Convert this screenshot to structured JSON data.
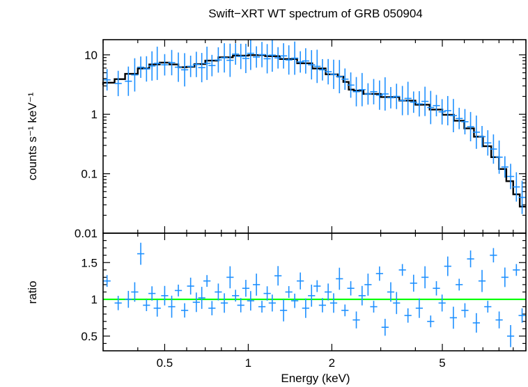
{
  "chart_data": [
    {
      "type": "scatter",
      "panel": "top",
      "title": "Swift−XRT WT spectrum of GRB 050904",
      "xlabel": "",
      "ylabel": "counts s⁻¹ keV⁻¹",
      "xscale": "log",
      "yscale": "log",
      "xlim": [
        0.3,
        10
      ],
      "ylim": [
        0.01,
        18
      ],
      "yticks": [
        {
          "v": 0.01,
          "label": "0.01"
        },
        {
          "v": 0.1,
          "label": "0.1"
        },
        {
          "v": 1,
          "label": "1"
        },
        {
          "v": 10,
          "label": "10"
        }
      ],
      "series": [
        {
          "kind": "data",
          "color": "#1e90ff",
          "points": [
            [
              0.31,
              3.8
            ],
            [
              0.34,
              3.3
            ],
            [
              0.37,
              3.6
            ],
            [
              0.39,
              4.6
            ],
            [
              0.41,
              6.2
            ],
            [
              0.43,
              5.8
            ],
            [
              0.45,
              6.5
            ],
            [
              0.47,
              7.2
            ],
            [
              0.5,
              6.8
            ],
            [
              0.53,
              7.4
            ],
            [
              0.56,
              6.2
            ],
            [
              0.59,
              5.6
            ],
            [
              0.62,
              6.4
            ],
            [
              0.65,
              6.9
            ],
            [
              0.68,
              6.1
            ],
            [
              0.71,
              7.2
            ],
            [
              0.74,
              6.6
            ],
            [
              0.78,
              8.2
            ],
            [
              0.82,
              8.9
            ],
            [
              0.86,
              8.1
            ],
            [
              0.9,
              10.3
            ],
            [
              0.94,
              9.4
            ],
            [
              0.98,
              8.7
            ],
            [
              1.02,
              10.6
            ],
            [
              1.07,
              9.2
            ],
            [
              1.12,
              10.1
            ],
            [
              1.17,
              8.6
            ],
            [
              1.22,
              9.9
            ],
            [
              1.28,
              8.9
            ],
            [
              1.34,
              9.6
            ],
            [
              1.4,
              8.2
            ],
            [
              1.47,
              8.8
            ],
            [
              1.54,
              7.6
            ],
            [
              1.61,
              7.9
            ],
            [
              1.69,
              6.8
            ],
            [
              1.77,
              6.4
            ],
            [
              1.85,
              5.6
            ],
            [
              1.94,
              5.2
            ],
            [
              2.03,
              4.7
            ],
            [
              2.13,
              4.3
            ],
            [
              2.23,
              3.9
            ],
            [
              2.34,
              3.1
            ],
            [
              2.45,
              2.4
            ],
            [
              2.57,
              2.6
            ],
            [
              2.7,
              2.2
            ],
            [
              2.83,
              2.4
            ],
            [
              2.97,
              2.1
            ],
            [
              3.11,
              2.2
            ],
            [
              3.26,
              1.9
            ],
            [
              3.42,
              2.0
            ],
            [
              3.59,
              1.7
            ],
            [
              3.76,
              1.85
            ],
            [
              3.94,
              1.6
            ],
            [
              4.13,
              1.5
            ],
            [
              4.33,
              1.65
            ],
            [
              4.54,
              1.3
            ],
            [
              4.76,
              1.4
            ],
            [
              4.99,
              1.1
            ],
            [
              5.23,
              1.15
            ],
            [
              5.48,
              0.95
            ],
            [
              5.75,
              0.85
            ],
            [
              6.03,
              0.75
            ],
            [
              6.32,
              0.62
            ],
            [
              6.63,
              0.5
            ],
            [
              6.95,
              0.42
            ],
            [
              7.29,
              0.33
            ],
            [
              7.64,
              0.26
            ],
            [
              8.01,
              0.19
            ],
            [
              8.4,
              0.13
            ],
            [
              8.81,
              0.09
            ],
            [
              9.24,
              0.06
            ],
            [
              9.69,
              0.04
            ]
          ]
        },
        {
          "kind": "model",
          "color": "#000000",
          "points": [
            [
              0.3,
              3.1
            ],
            [
              0.33,
              3.4
            ],
            [
              0.36,
              3.9
            ],
            [
              0.4,
              4.8
            ],
            [
              0.44,
              5.9
            ],
            [
              0.48,
              6.9
            ],
            [
              0.52,
              7.4
            ],
            [
              0.56,
              6.9
            ],
            [
              0.6,
              6.2
            ],
            [
              0.64,
              6.3
            ],
            [
              0.7,
              7.0
            ],
            [
              0.78,
              8.0
            ],
            [
              0.88,
              9.1
            ],
            [
              1.0,
              9.7
            ],
            [
              1.15,
              9.9
            ],
            [
              1.3,
              9.5
            ],
            [
              1.5,
              8.5
            ],
            [
              1.7,
              7.2
            ],
            [
              1.9,
              5.9
            ],
            [
              2.1,
              4.7
            ],
            [
              2.2,
              4.3
            ],
            [
              2.3,
              3.5
            ],
            [
              2.4,
              2.6
            ],
            [
              2.6,
              2.5
            ],
            [
              3.0,
              2.2
            ],
            [
              3.5,
              1.95
            ],
            [
              4.0,
              1.7
            ],
            [
              4.5,
              1.45
            ],
            [
              5.0,
              1.2
            ],
            [
              5.5,
              0.98
            ],
            [
              6.0,
              0.78
            ],
            [
              6.5,
              0.58
            ],
            [
              7.0,
              0.42
            ],
            [
              7.5,
              0.29
            ],
            [
              8.0,
              0.19
            ],
            [
              8.5,
              0.12
            ],
            [
              9.0,
              0.075
            ],
            [
              9.5,
              0.045
            ],
            [
              10.0,
              0.028
            ]
          ]
        }
      ]
    },
    {
      "type": "scatter",
      "panel": "bottom",
      "title": "",
      "xlabel": "Energy (keV)",
      "ylabel": "ratio",
      "xscale": "log",
      "yscale": "linear",
      "xlim": [
        0.3,
        10
      ],
      "ylim": [
        0.3,
        1.9
      ],
      "xticks": [
        {
          "v": 0.5,
          "label": "0.5"
        },
        {
          "v": 1,
          "label": "1"
        },
        {
          "v": 2,
          "label": "2"
        },
        {
          "v": 5,
          "label": "5"
        }
      ],
      "yticks": [
        {
          "v": 0.5,
          "label": "0.5"
        },
        {
          "v": 1,
          "label": "1"
        },
        {
          "v": 1.5,
          "label": "1.5"
        }
      ],
      "reference_line": {
        "y": 1,
        "color": "#00ff00"
      },
      "series": [
        {
          "kind": "data",
          "color": "#1e90ff",
          "points": [
            [
              0.31,
              1.25
            ],
            [
              0.34,
              0.95
            ],
            [
              0.37,
              1.0
            ],
            [
              0.39,
              1.1
            ],
            [
              0.41,
              1.62
            ],
            [
              0.43,
              0.92
            ],
            [
              0.45,
              1.08
            ],
            [
              0.47,
              0.88
            ],
            [
              0.5,
              1.05
            ],
            [
              0.53,
              0.9
            ],
            [
              0.56,
              1.12
            ],
            [
              0.59,
              0.85
            ],
            [
              0.62,
              1.18
            ],
            [
              0.65,
              0.96
            ],
            [
              0.68,
              1.02
            ],
            [
              0.71,
              1.25
            ],
            [
              0.74,
              0.88
            ],
            [
              0.78,
              1.1
            ],
            [
              0.82,
              0.95
            ],
            [
              0.86,
              1.3
            ],
            [
              0.9,
              1.05
            ],
            [
              0.94,
              0.92
            ],
            [
              0.98,
              1.15
            ],
            [
              1.02,
              0.98
            ],
            [
              1.07,
              1.2
            ],
            [
              1.12,
              0.9
            ],
            [
              1.17,
              1.08
            ],
            [
              1.22,
              0.95
            ],
            [
              1.28,
              1.32
            ],
            [
              1.34,
              0.85
            ],
            [
              1.4,
              1.1
            ],
            [
              1.47,
              0.98
            ],
            [
              1.54,
              1.25
            ],
            [
              1.61,
              0.88
            ],
            [
              1.69,
              1.05
            ],
            [
              1.77,
              1.18
            ],
            [
              1.85,
              0.92
            ],
            [
              1.94,
              1.1
            ],
            [
              2.03,
              0.95
            ],
            [
              2.13,
              1.28
            ],
            [
              2.23,
              0.85
            ],
            [
              2.34,
              1.15
            ],
            [
              2.45,
              0.72
            ],
            [
              2.57,
              1.05
            ],
            [
              2.7,
              1.2
            ],
            [
              2.83,
              0.9
            ],
            [
              2.97,
              1.35
            ],
            [
              3.11,
              0.62
            ],
            [
              3.26,
              1.1
            ],
            [
              3.42,
              0.95
            ],
            [
              3.59,
              1.4
            ],
            [
              3.76,
              0.78
            ],
            [
              3.94,
              1.22
            ],
            [
              4.13,
              0.88
            ],
            [
              4.33,
              1.3
            ],
            [
              4.54,
              0.7
            ],
            [
              4.76,
              1.15
            ],
            [
              4.99,
              0.95
            ],
            [
              5.23,
              1.45
            ],
            [
              5.48,
              0.75
            ],
            [
              5.75,
              1.2
            ],
            [
              6.03,
              0.85
            ],
            [
              6.32,
              1.55
            ],
            [
              6.63,
              0.68
            ],
            [
              6.95,
              1.25
            ],
            [
              7.29,
              0.9
            ],
            [
              7.64,
              1.6
            ],
            [
              8.01,
              0.72
            ],
            [
              8.4,
              1.3
            ],
            [
              8.81,
              0.5
            ],
            [
              9.24,
              1.4
            ],
            [
              9.69,
              0.78
            ]
          ]
        }
      ]
    }
  ]
}
